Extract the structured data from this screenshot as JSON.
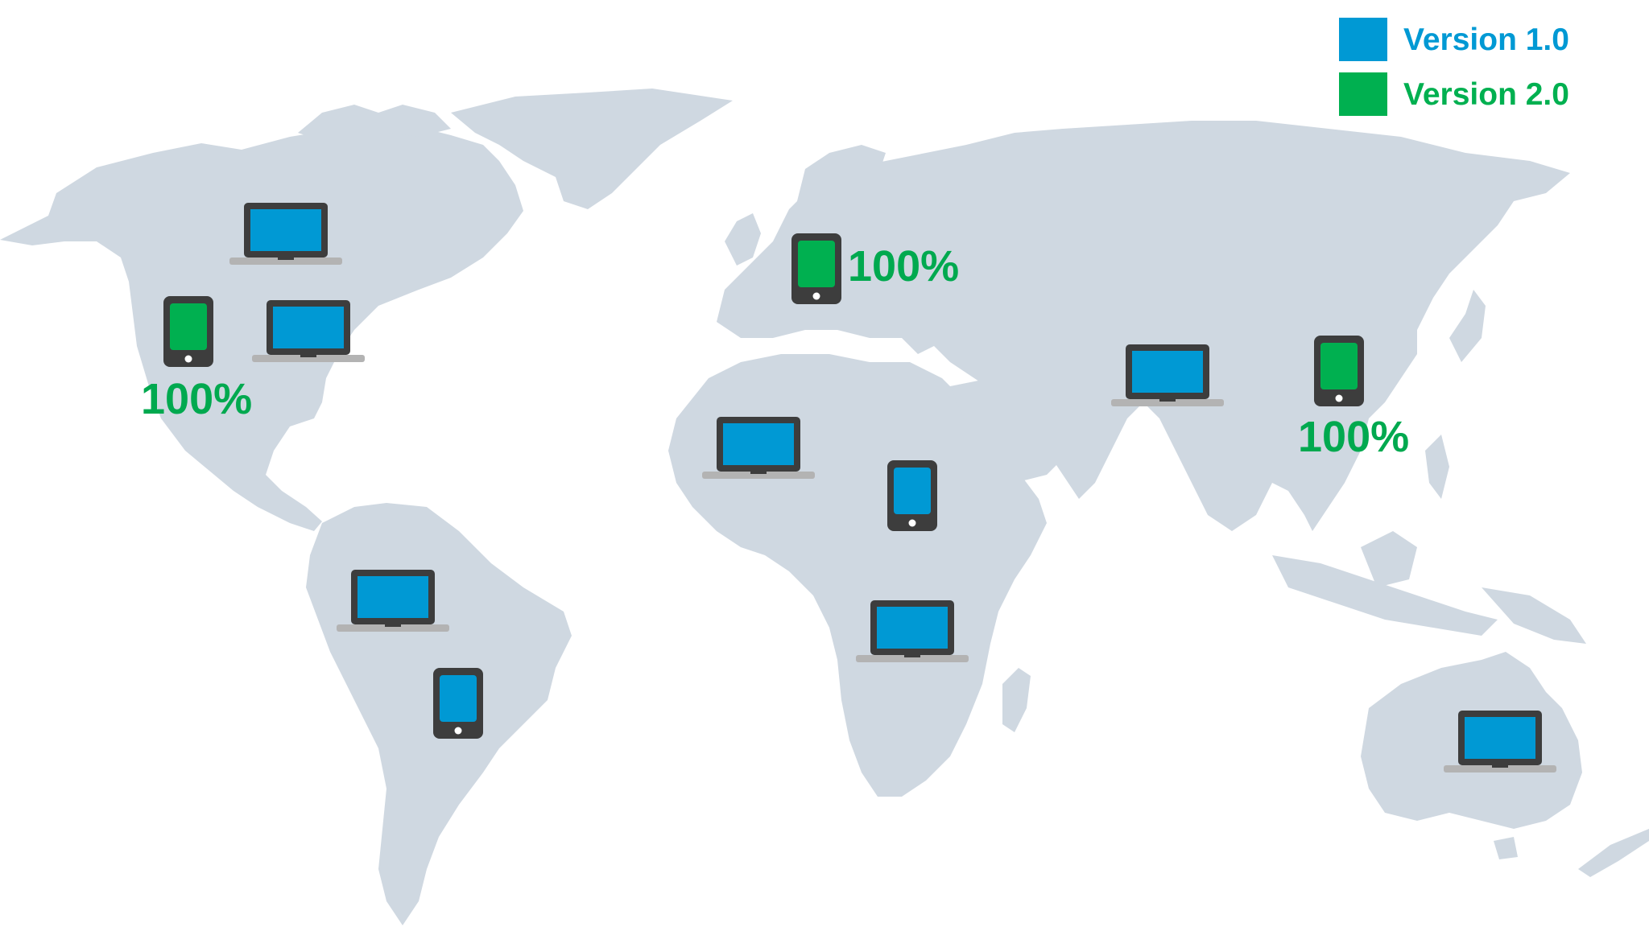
{
  "legend": {
    "items": [
      {
        "label": "Version 1.0",
        "color": "#0099d4"
      },
      {
        "label": "Version 2.0",
        "color": "#00b050"
      }
    ]
  },
  "colors": {
    "land": "#cfd8e1",
    "device_body": "#3d3d3d",
    "laptop_base": "#b3b3b3",
    "v1": "#0099d4",
    "v2": "#00b050",
    "percent_text": "#00a94f"
  },
  "regions": {
    "north_america_west": {
      "device": "tablet",
      "version": "Version 2.0",
      "percent": "100%"
    },
    "north_america_north": {
      "device": "laptop",
      "version": "Version 1.0"
    },
    "north_america_east": {
      "device": "laptop",
      "version": "Version 1.0"
    },
    "europe": {
      "device": "tablet",
      "version": "Version 2.0",
      "percent": "100%"
    },
    "asia_east": {
      "device": "tablet",
      "version": "Version 2.0",
      "percent": "100%"
    },
    "asia_central": {
      "device": "laptop",
      "version": "Version 1.0"
    },
    "africa_west": {
      "device": "laptop",
      "version": "Version 1.0"
    },
    "africa_east": {
      "device": "tablet",
      "version": "Version 1.0"
    },
    "africa_south": {
      "device": "laptop",
      "version": "Version 1.0"
    },
    "south_america_north": {
      "device": "laptop",
      "version": "Version 1.0"
    },
    "south_america_south": {
      "device": "tablet",
      "version": "Version 1.0"
    },
    "australia": {
      "device": "laptop",
      "version": "Version 1.0"
    }
  }
}
